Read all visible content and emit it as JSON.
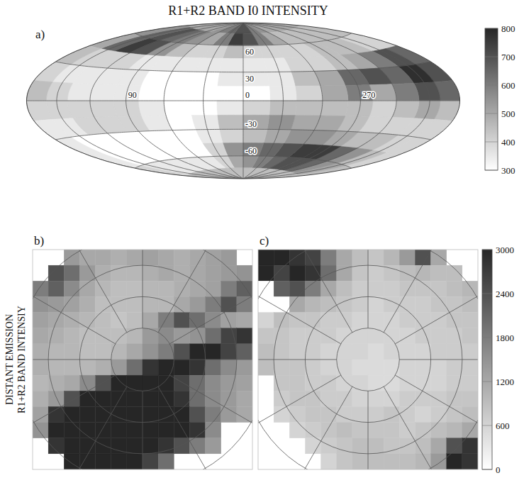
{
  "chart_data": [
    {
      "type": "heatmap",
      "title": "R1+R2 BAND I0 INTENSITY",
      "label": "a)",
      "grid": true,
      "x": [
        10,
        30,
        50,
        70,
        90,
        110,
        130,
        150,
        170,
        190,
        210,
        230,
        250,
        270,
        290,
        310,
        330,
        350
      ],
      "y": [
        82.5,
        67.5,
        52.5,
        37.5,
        22.5,
        7.5,
        -7.5,
        -22.5,
        -37.5,
        -52.5,
        -67.5,
        -82.5
      ],
      "cells": [
        [
          700,
          650,
          600,
          550,
          500,
          500,
          500,
          500,
          500,
          500,
          500,
          500,
          500,
          500,
          500,
          550,
          600,
          700
        ],
        [
          750,
          600,
          500,
          550,
          600,
          650,
          700,
          650,
          550,
          450,
          450,
          450,
          450,
          450,
          450,
          500,
          600,
          700
        ],
        [
          450,
          400,
          400,
          450,
          550,
          700,
          750,
          650,
          500,
          400,
          400,
          450,
          450,
          450,
          400,
          400,
          400,
          400
        ],
        [
          350,
          350,
          350,
          350,
          350,
          400,
          400,
          400,
          450,
          650,
          700,
          600,
          500,
          450,
          400,
          400,
          350,
          350
        ],
        [
          350,
          300,
          300,
          300,
          350,
          350,
          350,
          350,
          400,
          700,
          780,
          650,
          700,
          650,
          500,
          450,
          350,
          350
        ],
        [
          300,
          300,
          300,
          300,
          350,
          350,
          350,
          400,
          450,
          650,
          700,
          600,
          500,
          600,
          500,
          400,
          350,
          300
        ],
        [
          350,
          300,
          300,
          350,
          400,
          400,
          400,
          400,
          400,
          450,
          500,
          450,
          400,
          450,
          450,
          450,
          450,
          400
        ],
        [
          450,
          350,
          300,
          350,
          400,
          400,
          400,
          350,
          350,
          400,
          400,
          400,
          400,
          450,
          500,
          500,
          550,
          500
        ],
        [
          400,
          350,
          300,
          300,
          300,
          300,
          300,
          300,
          350,
          400,
          400,
          450,
          450,
          500,
          550,
          550,
          500,
          450
        ],
        [
          550,
          400,
          300,
          300,
          300,
          300,
          300,
          300,
          350,
          400,
          450,
          550,
          650,
          750,
          750,
          700,
          650,
          600
        ],
        [
          500,
          400,
          350,
          350,
          350,
          350,
          350,
          350,
          400,
          450,
          500,
          550,
          650,
          700,
          700,
          650,
          600,
          550
        ],
        [
          450,
          450,
          450,
          450,
          450,
          450,
          450,
          450,
          450,
          450,
          450,
          450,
          450,
          450,
          450,
          450,
          450,
          450
        ]
      ],
      "xlim": [
        0,
        360
      ],
      "ylim": [
        -90,
        90
      ],
      "xgrid": [
        0,
        30,
        60,
        90,
        120,
        150,
        180,
        210,
        240,
        270,
        300,
        330
      ],
      "ygrid": [
        -60,
        -30,
        0,
        30,
        60
      ],
      "xticks": [
        90,
        0,
        270
      ],
      "yticks": [
        60,
        30,
        -30,
        -60
      ],
      "colorbar_lim": [
        300,
        800
      ],
      "colorbar_ticks": [
        300,
        400,
        500,
        600,
        700,
        800
      ]
    },
    {
      "type": "heatmap",
      "label": "b)",
      "ylabel": "DISTANT EMISSION R1+R2 BAND INTENSIY",
      "grid": true,
      "x": [
        -32.5,
        -27.5,
        -22.5,
        -17.5,
        -12.5,
        -7.5,
        -2.5,
        2.5,
        7.5,
        12.5,
        17.5,
        22.5,
        27.5,
        32.5
      ],
      "y": [
        32.5,
        27.5,
        22.5,
        17.5,
        12.5,
        7.5,
        2.5,
        -2.5,
        -7.5,
        -12.5,
        -17.5,
        -22.5,
        -27.5,
        -32.5
      ],
      "cells": [
        [
          null,
          null,
          1400,
          1200,
          1200,
          1100,
          1200,
          1300,
          1200,
          1100,
          1200,
          1300,
          1400,
          null
        ],
        [
          null,
          2400,
          2000,
          1400,
          1100,
          1000,
          1000,
          1100,
          1200,
          1100,
          1200,
          1300,
          1400,
          1500
        ],
        [
          1800,
          2200,
          1600,
          1200,
          1000,
          900,
          900,
          1000,
          1000,
          1100,
          1200,
          1300,
          1800,
          2200
        ],
        [
          1500,
          1400,
          1300,
          1100,
          900,
          900,
          900,
          1000,
          1000,
          1200,
          1400,
          1800,
          2400,
          1800
        ],
        [
          1300,
          1200,
          1100,
          1000,
          900,
          800,
          900,
          1200,
          1800,
          2400,
          2000,
          1600,
          1300,
          1200
        ],
        [
          1200,
          1100,
          1000,
          900,
          900,
          900,
          1000,
          1400,
          1600,
          1400,
          1500,
          2000,
          2600,
          2800
        ],
        [
          1100,
          1000,
          1000,
          900,
          900,
          1000,
          1200,
          1500,
          1800,
          2400,
          3000,
          3000,
          2600,
          2200
        ],
        [
          1100,
          1000,
          1000,
          1000,
          1100,
          1400,
          2000,
          2800,
          3000,
          3000,
          2800,
          2000,
          1600,
          1400
        ],
        [
          1000,
          1100,
          1200,
          1600,
          2400,
          3000,
          3000,
          3000,
          3000,
          2600,
          2000,
          1600,
          1400,
          1300
        ],
        [
          1100,
          1400,
          2400,
          3000,
          3000,
          3000,
          3000,
          3000,
          3000,
          2800,
          2000,
          1600,
          1400,
          1200
        ],
        [
          1300,
          2800,
          3000,
          3000,
          3000,
          3000,
          3000,
          3000,
          3000,
          3000,
          2400,
          1800,
          1400,
          1200
        ],
        [
          1500,
          3000,
          3000,
          3000,
          3000,
          3000,
          3000,
          3000,
          3000,
          3000,
          2800,
          1600,
          null,
          null
        ],
        [
          null,
          2800,
          3000,
          3000,
          3000,
          3000,
          3000,
          3000,
          2800,
          2400,
          1800,
          1400,
          null,
          null
        ],
        [
          null,
          null,
          3000,
          3000,
          3000,
          3000,
          3000,
          2600,
          2000,
          null,
          null,
          null,
          null,
          null
        ]
      ],
      "xlim": [
        -35,
        35
      ],
      "ylim": [
        -35,
        35
      ],
      "rings": [
        10,
        20,
        30,
        40
      ],
      "spokes": [
        0,
        30,
        60,
        90,
        120,
        150,
        180,
        210,
        240,
        270,
        300,
        330
      ]
    },
    {
      "type": "heatmap",
      "label": "c)",
      "grid": true,
      "x": [
        -32.5,
        -27.5,
        -22.5,
        -17.5,
        -12.5,
        -7.5,
        -2.5,
        2.5,
        7.5,
        12.5,
        17.5,
        22.5,
        27.5,
        32.5
      ],
      "y": [
        32.5,
        27.5,
        22.5,
        17.5,
        12.5,
        7.5,
        2.5,
        -2.5,
        -7.5,
        -12.5,
        -17.5,
        -22.5,
        -27.5,
        -32.5
      ],
      "cells": [
        [
          3000,
          3000,
          2800,
          2600,
          1800,
          1200,
          900,
          800,
          1000,
          1400,
          2400,
          1200,
          null,
          null
        ],
        [
          3000,
          2600,
          3000,
          2800,
          2000,
          1200,
          800,
          700,
          800,
          900,
          1000,
          900,
          900,
          null
        ],
        [
          0,
          2200,
          2400,
          1800,
          1200,
          900,
          700,
          700,
          700,
          800,
          800,
          800,
          900,
          1000
        ],
        [
          0,
          0,
          1200,
          1000,
          900,
          800,
          700,
          600,
          700,
          700,
          700,
          800,
          800,
          900
        ],
        [
          600,
          900,
          800,
          800,
          700,
          700,
          600,
          600,
          600,
          700,
          700,
          700,
          800,
          800
        ],
        [
          800,
          800,
          700,
          700,
          700,
          600,
          600,
          600,
          600,
          600,
          700,
          700,
          700,
          800
        ],
        [
          900,
          800,
          700,
          700,
          600,
          600,
          600,
          500,
          600,
          600,
          600,
          700,
          700,
          700
        ],
        [
          900,
          800,
          800,
          700,
          600,
          600,
          500,
          500,
          500,
          600,
          600,
          600,
          700,
          700
        ],
        [
          null,
          800,
          800,
          700,
          700,
          600,
          600,
          500,
          500,
          600,
          600,
          600,
          700,
          700
        ],
        [
          null,
          700,
          800,
          800,
          700,
          700,
          600,
          600,
          600,
          700,
          700,
          700,
          800,
          800
        ],
        [
          null,
          600,
          700,
          800,
          800,
          700,
          700,
          700,
          800,
          700,
          600,
          700,
          800,
          900
        ],
        [
          null,
          null,
          600,
          700,
          800,
          900,
          800,
          800,
          800,
          700,
          800,
          900,
          1000,
          1200
        ],
        [
          null,
          null,
          null,
          600,
          700,
          800,
          900,
          900,
          800,
          800,
          900,
          1200,
          2400,
          2800
        ],
        [
          null,
          null,
          null,
          null,
          600,
          800,
          900,
          900,
          900,
          900,
          1000,
          1400,
          3000,
          2800
        ]
      ],
      "xlim": [
        -35,
        35
      ],
      "ylim": [
        -35,
        35
      ],
      "rings": [
        10,
        20,
        30,
        40
      ],
      "spokes": [
        0,
        30,
        60,
        90,
        120,
        150,
        180,
        210,
        240,
        270,
        300,
        330
      ],
      "colorbar_lim": [
        0,
        3000
      ],
      "colorbar_ticks": [
        0,
        600,
        1200,
        1800,
        2400,
        3000
      ]
    }
  ]
}
